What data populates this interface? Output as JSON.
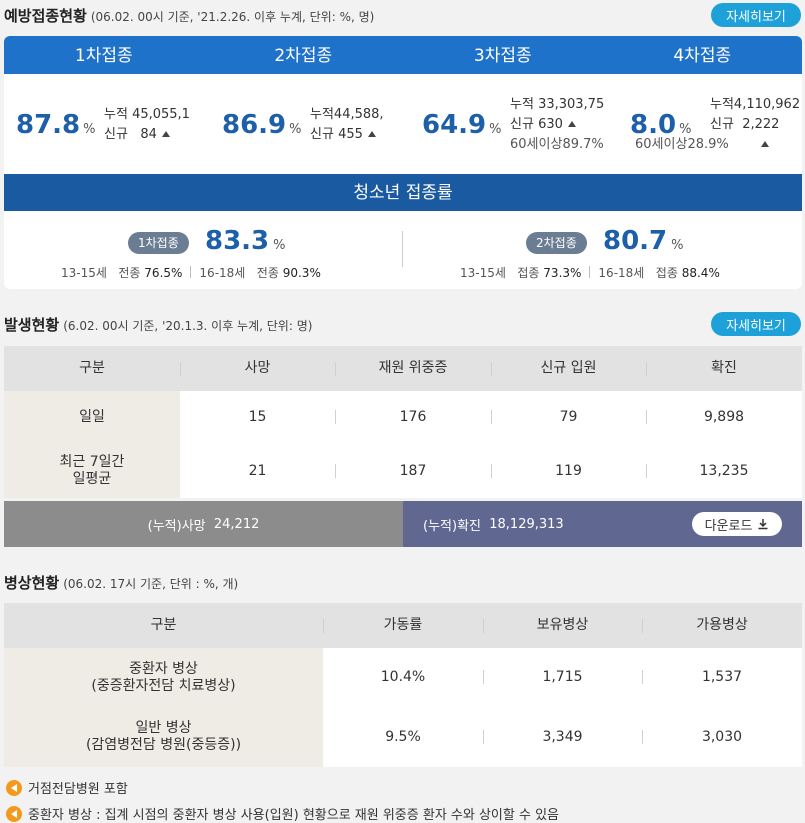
{
  "vaccination": {
    "title": "예방접종현황",
    "subtitle": "(06.02. 00시 기준, '21.2.26. 이후 누계, 단위: %, 명)",
    "more_label": "자세히보기",
    "doses": [
      {
        "label": "1차접종",
        "pct": "87.8",
        "unit": "%",
        "cum_label": "누적",
        "cum": "45,055,1",
        "new_label": "신규",
        "new": "84",
        "extra": ""
      },
      {
        "label": "2차접종",
        "pct": "86.9",
        "unit": "%",
        "cum_label": "누적",
        "cum": "44,588,",
        "new_label": "신규",
        "new": "455",
        "extra": ""
      },
      {
        "label": "3차접종",
        "pct": "64.9",
        "unit": "%",
        "cum_label": "누적",
        "cum": "33,303,75",
        "new_label": "신규",
        "new": "630",
        "extra_label": "60세이상",
        "extra": "89.7%"
      },
      {
        "label": "4차접종",
        "pct": "8.0",
        "unit": "%",
        "cum_label": "누적",
        "cum": "4,110,962",
        "new_label": "신규",
        "new": "2,222",
        "extra_label": "60세이상",
        "extra": "28.9%"
      }
    ],
    "teen": {
      "title": "청소년 접종률",
      "first": {
        "badge": "1차접종",
        "pct": "83.3",
        "unit": "%",
        "g1_age": "13-15세",
        "g1_label": "전종",
        "g1_val": "76.5%",
        "g2_age": "16-18세",
        "g2_label": "전종",
        "g2_val": "90.3%"
      },
      "second": {
        "badge": "2차접종",
        "pct": "80.7",
        "unit": "%",
        "g1_age": "13-15세",
        "g1_label": "접종",
        "g1_val": "73.3%",
        "g2_age": "16-18세",
        "g2_label": "접종",
        "g2_val": "88.4%"
      }
    }
  },
  "occurrence": {
    "title": "발생현황",
    "subtitle": "(6.02. 00시 기준, '20.1.3. 이후 누계, 단위: 명)",
    "more_label": "자세히보기",
    "headers": [
      "구분",
      "사망",
      "재원 위중증",
      "신규 입원",
      "확진"
    ],
    "rows": [
      {
        "label": "일일",
        "values": [
          "15",
          "176",
          "79",
          "9,898"
        ]
      },
      {
        "label": "최근 7일간\n일평균",
        "values": [
          "21",
          "187",
          "119",
          "13,235"
        ]
      }
    ],
    "total_death_label": "(누적)사망",
    "total_death": "24,212",
    "total_confirmed_label": "(누적)확진",
    "total_confirmed": "18,129,313",
    "download_label": "다운로드"
  },
  "beds": {
    "title": "병상현황",
    "subtitle": "(06.02. 17시 기준, 단위 : %, 개)",
    "headers": [
      "구분",
      "가동률",
      "보유병상",
      "가용병상"
    ],
    "rows": [
      {
        "label": "중환자 병상\n(중증환자전담 치료병상)",
        "values": [
          "10.4%",
          "1,715",
          "1,537"
        ]
      },
      {
        "label": "일반 병상\n(감염병전담 병원(중등증))",
        "values": [
          "9.5%",
          "3,349",
          "3,030"
        ]
      }
    ]
  },
  "notes": [
    "거점전담병원 포함",
    "중환자 병상 : 집계 시점의 중환자 병상 사용(입원) 현황으로 재원 위중증 환자 수와 상이할 수 있음"
  ]
}
